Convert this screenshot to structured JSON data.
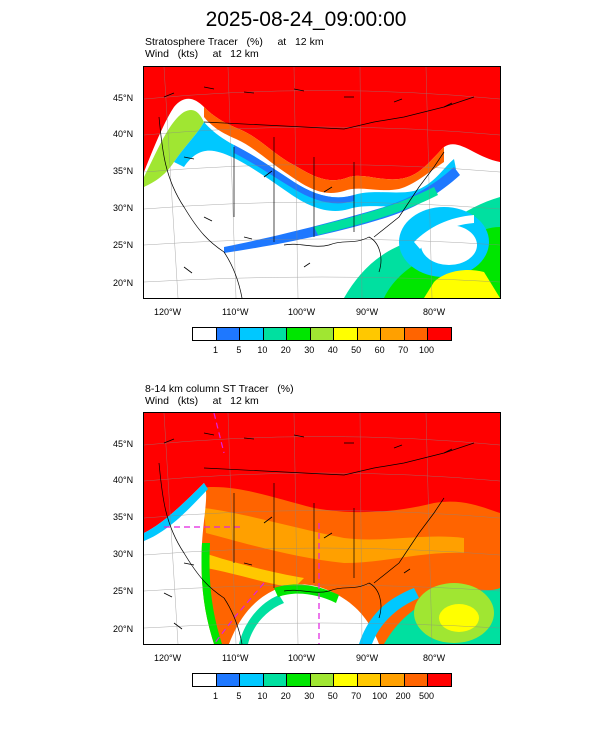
{
  "title": "2025-08-24_09:00:00",
  "panel_top": {
    "label_line1": "Stratosphere Tracer   (%)     at   12 km",
    "label_line2": "Wind   (kts)     at   12 km",
    "lat_labels": [
      "45°N",
      "40°N",
      "35°N",
      "30°N",
      "25°N",
      "20°N"
    ],
    "lon_labels": [
      "120°W",
      "110°W",
      "100°W",
      "90°W",
      "80°W"
    ],
    "colorbar": {
      "colors": [
        "#ffffff",
        "#1e78ff",
        "#00c8ff",
        "#00e0a0",
        "#00e600",
        "#a0e632",
        "#ffff00",
        "#ffc800",
        "#ffa000",
        "#ff6400",
        "#ff0000"
      ],
      "labels": [
        "1",
        "5",
        "10",
        "20",
        "30",
        "40",
        "50",
        "60",
        "70",
        "100"
      ]
    }
  },
  "panel_bottom": {
    "label_line1": "8-14 km column ST Tracer   (%)",
    "label_line2": "Wind   (kts)     at   12 km",
    "lat_labels": [
      "45°N",
      "40°N",
      "35°N",
      "30°N",
      "25°N",
      "20°N"
    ],
    "lon_labels": [
      "120°W",
      "110°W",
      "100°W",
      "90°W",
      "80°W"
    ],
    "colorbar": {
      "colors": [
        "#ffffff",
        "#1e78ff",
        "#00c8ff",
        "#00e0a0",
        "#00e600",
        "#a0e632",
        "#ffff00",
        "#ffc800",
        "#ffa000",
        "#ff6400",
        "#ff0000"
      ],
      "labels": [
        "1",
        "5",
        "10",
        "20",
        "30",
        "50",
        "70",
        "100",
        "200",
        "500"
      ]
    }
  },
  "colors": {
    "red": "#ff0000",
    "orange": "#ff6400",
    "border": "#000000",
    "magenta_dash": "#e020e0"
  }
}
